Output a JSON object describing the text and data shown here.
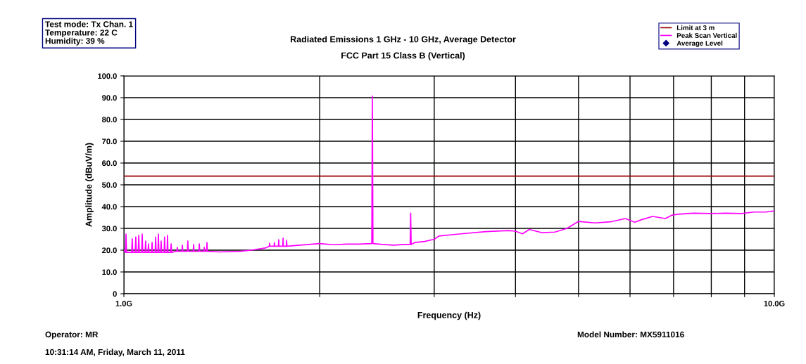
{
  "chart_data": {
    "type": "line",
    "title": "Radiated Emissions 1 GHz - 10 GHz, Average Detector",
    "subtitle": "FCC Part 15 Class B (Vertical)",
    "xlabel": "Frequency (Hz)",
    "ylabel": "Amplitude (dBuV/m)",
    "log": "x",
    "grid": true,
    "legend": "top right",
    "xlim": [
      1,
      10
    ],
    "xticks": [
      {
        "value": 1,
        "label": "1.0G"
      },
      {
        "value": 2,
        "label": null
      },
      {
        "value": 3,
        "label": null
      },
      {
        "value": 4,
        "label": null
      },
      {
        "value": 5,
        "label": null
      },
      {
        "value": 6,
        "label": null
      },
      {
        "value": 7,
        "label": null
      },
      {
        "value": 8,
        "label": null
      },
      {
        "value": 9,
        "label": null
      },
      {
        "value": 10,
        "label": "10.0G"
      }
    ],
    "ylim": [
      0,
      100
    ],
    "yticks": [
      {
        "value": 0,
        "label": "0"
      },
      {
        "value": 10,
        "label": "10.0"
      },
      {
        "value": 20,
        "label": "20.0"
      },
      {
        "value": 30,
        "label": "30.0"
      },
      {
        "value": 40,
        "label": "40.0"
      },
      {
        "value": 50,
        "label": "50.0"
      },
      {
        "value": 60,
        "label": "60.0"
      },
      {
        "value": 70,
        "label": "70.0"
      },
      {
        "value": 80,
        "label": "80.0"
      },
      {
        "value": 90,
        "label": "90.0"
      },
      {
        "value": 100,
        "label": "100.0"
      }
    ],
    "annotations": [
      "Test mode: Tx Chan. 1\nTemperature: 22 C\nHumidity: 39 %",
      "Operator: MR",
      "10:31:14 AM, Friday, March 11, 2011",
      "Model Number: MX5911016"
    ],
    "series": [
      {
        "name": "Limit at 3 m",
        "color": "#990000",
        "marker": "none",
        "x": [
          1,
          10
        ],
        "values": [
          54,
          54
        ]
      },
      {
        "name": "Peak Scan Vertical",
        "color": "#ff00ff",
        "marker": "none",
        "x": [
          1,
          1.0055,
          1.0075,
          1.0095,
          1.028,
          1.03,
          1.032,
          1.041,
          1.043,
          1.045,
          1.052,
          1.054,
          1.056,
          1.065,
          1.067,
          1.069,
          1.078,
          1.08,
          1.082,
          1.089,
          1.091,
          1.093,
          1.103,
          1.105,
          1.107,
          1.117,
          1.119,
          1.121,
          1.128,
          1.13,
          1.132,
          1.139,
          1.141,
          1.143,
          1.153,
          1.155,
          1.157,
          1.165,
          1.167,
          1.169,
          1.18,
          1.182,
          1.184,
          1.206,
          1.208,
          1.21,
          1.228,
          1.23,
          1.232,
          1.252,
          1.254,
          1.256,
          1.278,
          1.28,
          1.282,
          1.304,
          1.306,
          1.308,
          1.327,
          1.329,
          1.331,
          1.34,
          1.342,
          1.344,
          1.4,
          1.5,
          1.57,
          1.65,
          1.673,
          1.675,
          1.677,
          1.702,
          1.704,
          1.706,
          1.728,
          1.73,
          1.732,
          1.755,
          1.757,
          1.759,
          1.777,
          1.779,
          1.781,
          1.85,
          2.0,
          2.1,
          2.2,
          2.3,
          2.405,
          2.41,
          2.415,
          2.5,
          2.6,
          2.7,
          2.755,
          2.76,
          2.765,
          2.8,
          2.9,
          3.0,
          3.05,
          3.3,
          3.6,
          3.9,
          4.0,
          4.1,
          4.2,
          4.4,
          4.6,
          4.8,
          5.0,
          5.3,
          5.6,
          5.9,
          6.1,
          6.25,
          6.5,
          6.8,
          6.95,
          7.1,
          7.5,
          8.0,
          8.4,
          8.9,
          9.3,
          9.7,
          10
        ],
        "values": [
          20,
          19,
          27.4,
          19,
          19,
          25.2,
          19,
          19,
          26,
          19,
          19,
          26.8,
          19,
          19,
          27.4,
          19,
          19,
          24.2,
          19,
          19,
          22.9,
          19,
          19,
          23.5,
          19,
          19,
          26,
          19,
          19,
          27.4,
          19,
          19,
          24.2,
          19,
          19,
          26,
          19,
          19,
          26.8,
          19,
          19,
          22.9,
          19,
          19.5,
          21.3,
          19.5,
          19.5,
          22.3,
          19.5,
          19.5,
          24.2,
          19.5,
          19.5,
          22.6,
          19.5,
          19.5,
          22.9,
          19.5,
          19.5,
          21.3,
          19.5,
          19.5,
          23.5,
          19.5,
          19.2,
          19.4,
          20,
          21,
          21.8,
          23.2,
          21.8,
          21.8,
          23.5,
          21.8,
          21.8,
          24.8,
          21.8,
          21.8,
          25.5,
          21.8,
          21.8,
          24.5,
          21.8,
          22.2,
          23,
          22.5,
          22.8,
          22.8,
          23,
          90.7,
          23,
          22.6,
          22.3,
          22.6,
          22.6,
          37,
          22.6,
          23.5,
          24,
          25,
          26.5,
          27.5,
          28.5,
          29,
          28.7,
          27.5,
          29.5,
          28,
          28.3,
          30,
          33.2,
          32.5,
          33,
          34.5,
          32.8,
          34,
          35.5,
          34.5,
          36,
          36.5,
          37,
          36.8,
          37,
          36.8,
          37.5,
          37.5,
          38
        ]
      },
      {
        "name": "Average Level",
        "type": "scatter",
        "color": "#000080",
        "marker": "diamond"
      }
    ]
  }
}
